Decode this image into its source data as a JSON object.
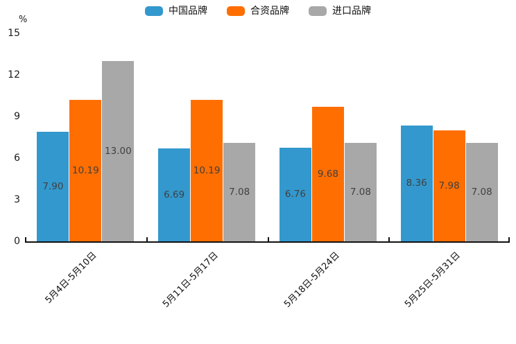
{
  "chart_data": {
    "type": "bar",
    "unit_label": "%",
    "categories": [
      "5月4日-5月10日",
      "5月11日-5月17日",
      "5月18日-5月24日",
      "5月25日-5月31日"
    ],
    "series": [
      {
        "name": "中国品牌",
        "color": "#3398CD",
        "values": [
          7.9,
          6.69,
          6.76,
          8.36
        ],
        "labels": [
          "7.90",
          "6.69",
          "6.76",
          "8.36"
        ]
      },
      {
        "name": "合资品牌",
        "color": "#FF6E00",
        "values": [
          10.19,
          10.19,
          9.68,
          7.98
        ],
        "labels": [
          "10.19",
          "10.19",
          "9.68",
          "7.98"
        ]
      },
      {
        "name": "进口品牌",
        "color": "#A8A8A8",
        "values": [
          13.0,
          7.08,
          7.08,
          7.08
        ],
        "labels": [
          "13.00",
          "7.08",
          "7.08",
          "7.08"
        ]
      }
    ],
    "y_ticks": [
      "0",
      "3",
      "6",
      "9",
      "12",
      "15"
    ],
    "ylim": [
      0,
      15
    ],
    "legend_position": "top",
    "grid": false,
    "value_label_position": "inside-center",
    "x_label_rotation_deg": 45
  }
}
